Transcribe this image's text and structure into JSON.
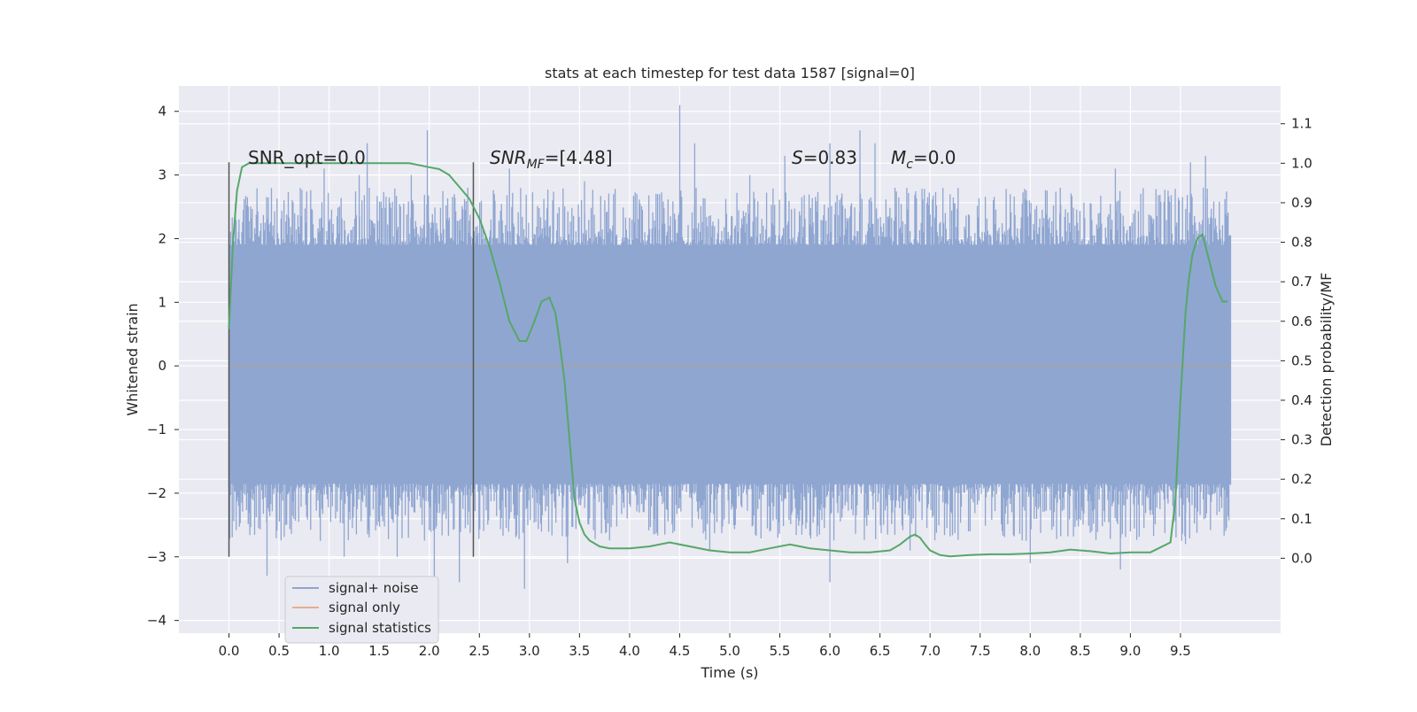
{
  "chart_data": {
    "type": "line",
    "title": "stats at each timestep for test data 1587 [signal=0]",
    "xlabel": "Time (s)",
    "ylabel_left": "Whitened strain",
    "ylabel_right": "Detection probability/MF",
    "xlim": [
      -0.5,
      10.5
    ],
    "ylim_left": [
      -4.2,
      4.4
    ],
    "ylim_right": [
      -0.1897,
      1.1958
    ],
    "x_ticks": [
      "0.0",
      "0.5",
      "1.0",
      "1.5",
      "2.0",
      "2.5",
      "3.0",
      "3.5",
      "4.0",
      "4.5",
      "5.0",
      "5.5",
      "6.0",
      "6.5",
      "7.0",
      "7.5",
      "8.0",
      "8.5",
      "9.0",
      "9.5"
    ],
    "y_left_ticks": [
      "4",
      "3",
      "2",
      "1",
      "0",
      "−1",
      "−2",
      "−3",
      "−4"
    ],
    "y_right_ticks": [
      "1.1",
      "1.0",
      "0.9",
      "0.8",
      "0.7",
      "0.6",
      "0.5",
      "0.4",
      "0.3",
      "0.2",
      "0.1",
      "0.0"
    ],
    "grid": true,
    "legend_position": "lower-left",
    "annotations": {
      "snr_opt": "SNR_opt=0.0",
      "snr_mf_main": "SNR",
      "snr_mf_sub": "MF",
      "snr_mf_value": "=[4.48]",
      "s_symbol": "S",
      "s_value": "=0.83",
      "mc_main": "M",
      "mc_sub": "c",
      "mc_value": "=0.0"
    },
    "markers_x": [
      0.0,
      2.44
    ],
    "series": [
      {
        "name": "signal+ noise",
        "color": "#8fa6d1",
        "axis": "left",
        "t_range": [
          0.0,
          10.0
        ],
        "core_band": [
          -1.85,
          1.9
        ],
        "peaks": [
          [
            0.1,
            2.3
          ],
          [
            0.55,
            2.6
          ],
          [
            0.95,
            3.1
          ],
          [
            1.3,
            3.0
          ],
          [
            1.38,
            3.5
          ],
          [
            1.82,
            3.0
          ],
          [
            1.98,
            3.7
          ],
          [
            2.25,
            2.7
          ],
          [
            2.65,
            2.7
          ],
          [
            2.8,
            3.1
          ],
          [
            3.55,
            2.9
          ],
          [
            4.3,
            2.7
          ],
          [
            4.5,
            4.1
          ],
          [
            4.65,
            3.5
          ],
          [
            5.2,
            3.0
          ],
          [
            5.55,
            3.3
          ],
          [
            6.0,
            3.5
          ],
          [
            6.3,
            3.7
          ],
          [
            6.45,
            3.5
          ],
          [
            6.65,
            2.8
          ],
          [
            7.2,
            2.7
          ],
          [
            7.8,
            2.7
          ],
          [
            8.3,
            2.8
          ],
          [
            8.85,
            3.1
          ],
          [
            9.6,
            3.2
          ],
          [
            9.75,
            3.3
          ]
        ],
        "troughs": [
          [
            0.38,
            -3.3
          ],
          [
            1.15,
            -3.0
          ],
          [
            1.68,
            -3.0
          ],
          [
            2.05,
            -3.5
          ],
          [
            2.3,
            -3.4
          ],
          [
            2.95,
            -3.5
          ],
          [
            3.38,
            -3.1
          ],
          [
            4.8,
            -2.9
          ],
          [
            5.48,
            -2.7
          ],
          [
            6.0,
            -3.4
          ],
          [
            6.8,
            -2.9
          ],
          [
            8.0,
            -3.1
          ],
          [
            8.9,
            -3.2
          ],
          [
            9.55,
            -2.8
          ]
        ]
      },
      {
        "name": "signal only",
        "color": "#dd8452",
        "axis": "left",
        "x": [
          0.0,
          10.0
        ],
        "y": [
          0.0,
          0.0
        ]
      },
      {
        "name": "signal statistics",
        "color": "#55a868",
        "axis": "right",
        "x": [
          0.0,
          0.04,
          0.08,
          0.13,
          0.2,
          0.3,
          0.5,
          1.0,
          1.5,
          1.8,
          2.0,
          2.1,
          2.2,
          2.3,
          2.4,
          2.5,
          2.6,
          2.7,
          2.8,
          2.9,
          2.97,
          3.05,
          3.12,
          3.2,
          3.26,
          3.3,
          3.35,
          3.4,
          3.45,
          3.5,
          3.55,
          3.6,
          3.7,
          3.8,
          4.0,
          4.2,
          4.4,
          4.6,
          4.8,
          5.0,
          5.2,
          5.4,
          5.6,
          5.8,
          6.0,
          6.2,
          6.4,
          6.6,
          6.7,
          6.8,
          6.85,
          6.9,
          6.95,
          7.0,
          7.1,
          7.2,
          7.4,
          7.6,
          7.8,
          8.0,
          8.2,
          8.4,
          8.6,
          8.8,
          9.0,
          9.2,
          9.4,
          9.45,
          9.5,
          9.55,
          9.58,
          9.62,
          9.67,
          9.72,
          9.78,
          9.85,
          9.92,
          9.97
        ],
        "y": [
          0.58,
          0.8,
          0.93,
          0.99,
          1.0,
          1.0,
          1.0,
          1.0,
          1.0,
          1.0,
          0.99,
          0.985,
          0.97,
          0.94,
          0.91,
          0.86,
          0.79,
          0.7,
          0.6,
          0.55,
          0.55,
          0.6,
          0.65,
          0.66,
          0.62,
          0.55,
          0.45,
          0.3,
          0.15,
          0.09,
          0.06,
          0.045,
          0.03,
          0.025,
          0.025,
          0.03,
          0.04,
          0.03,
          0.02,
          0.015,
          0.015,
          0.025,
          0.035,
          0.025,
          0.02,
          0.015,
          0.015,
          0.02,
          0.035,
          0.055,
          0.06,
          0.052,
          0.035,
          0.02,
          0.008,
          0.005,
          0.008,
          0.01,
          0.01,
          0.012,
          0.015,
          0.022,
          0.018,
          0.012,
          0.015,
          0.015,
          0.04,
          0.15,
          0.4,
          0.62,
          0.7,
          0.77,
          0.81,
          0.82,
          0.76,
          0.69,
          0.65,
          0.65
        ]
      }
    ]
  }
}
